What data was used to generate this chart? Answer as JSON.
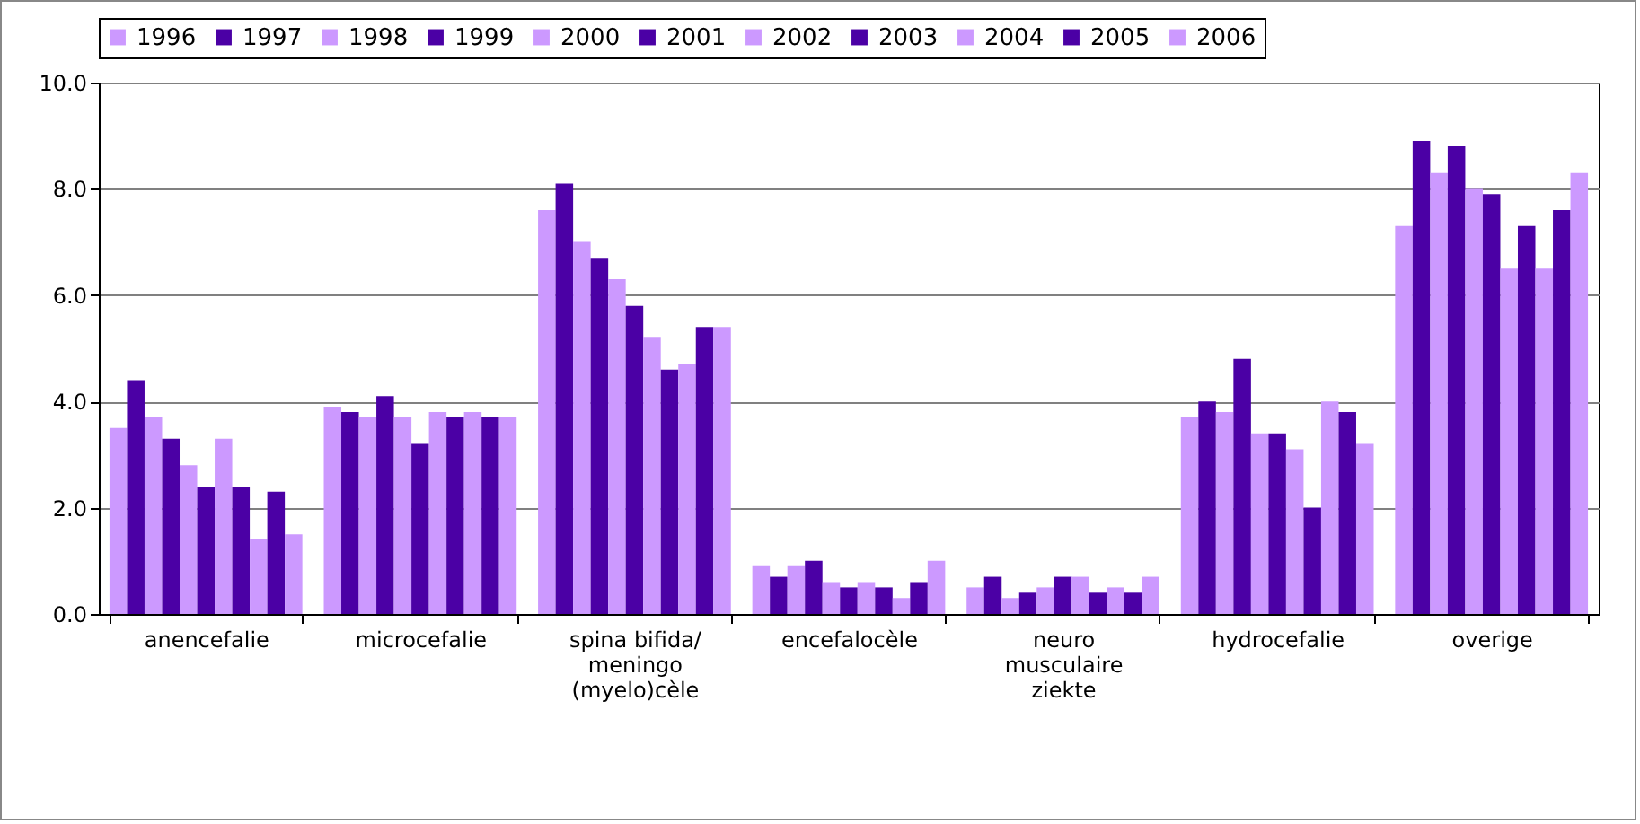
{
  "chart_data": {
    "type": "bar",
    "categories": [
      "anencefalie",
      "microcefalie",
      "spina bifida/ meningo (myelo)cèle",
      "encefalocèle",
      "neuro musculaire ziekte",
      "hydrocefalie",
      "overige"
    ],
    "series": [
      {
        "name": "1996",
        "color": "#cc99ff",
        "values": [
          3.5,
          3.9,
          7.6,
          0.9,
          0.5,
          3.7,
          7.3
        ]
      },
      {
        "name": "1997",
        "color": "#4b00a5",
        "values": [
          4.4,
          3.8,
          8.1,
          0.7,
          0.7,
          4.0,
          8.9
        ]
      },
      {
        "name": "1998",
        "color": "#cc99ff",
        "values": [
          3.7,
          3.7,
          7.0,
          0.9,
          0.3,
          3.8,
          8.3
        ]
      },
      {
        "name": "1999",
        "color": "#4b00a5",
        "values": [
          3.3,
          4.1,
          6.7,
          1.0,
          0.4,
          4.8,
          8.8
        ]
      },
      {
        "name": "2000",
        "color": "#cc99ff",
        "values": [
          2.8,
          3.7,
          6.3,
          0.6,
          0.5,
          3.4,
          8.0
        ]
      },
      {
        "name": "2001",
        "color": "#4b00a5",
        "values": [
          2.4,
          3.2,
          5.8,
          0.5,
          0.7,
          3.4,
          7.9
        ]
      },
      {
        "name": "2002",
        "color": "#cc99ff",
        "values": [
          3.3,
          3.8,
          5.2,
          0.6,
          0.7,
          3.1,
          6.5
        ]
      },
      {
        "name": "2003",
        "color": "#4b00a5",
        "values": [
          2.4,
          3.7,
          4.6,
          0.5,
          0.4,
          2.0,
          7.3
        ]
      },
      {
        "name": "2004",
        "color": "#cc99ff",
        "values": [
          1.4,
          3.8,
          4.7,
          0.3,
          0.5,
          4.0,
          6.5
        ]
      },
      {
        "name": "2005",
        "color": "#4b00a5",
        "values": [
          2.3,
          3.7,
          5.4,
          0.6,
          0.4,
          3.8,
          7.6
        ]
      },
      {
        "name": "2006",
        "color": "#cc99ff",
        "values": [
          1.5,
          3.7,
          5.4,
          1.0,
          0.7,
          3.2,
          8.3
        ]
      }
    ],
    "ylim": [
      0,
      10
    ],
    "yticks": [
      {
        "value": 0,
        "label": "0.0"
      },
      {
        "value": 2,
        "label": "2.0"
      },
      {
        "value": 4,
        "label": "4.0"
      },
      {
        "value": 6,
        "label": "6.0"
      },
      {
        "value": 8,
        "label": "8.0"
      },
      {
        "value": 10,
        "label": "10.0"
      }
    ],
    "grid": "y",
    "legend": "top"
  }
}
